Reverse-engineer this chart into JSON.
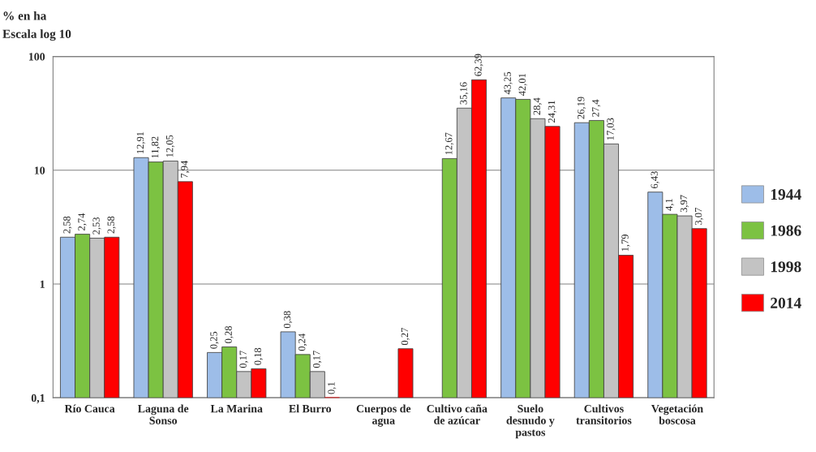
{
  "chart_data": {
    "type": "bar",
    "title": "% en ha",
    "subtitle": "Escala log 10",
    "categories": [
      "Río Cauca",
      "Laguna de\nSonso",
      "La Marina",
      "El Burro",
      "Cuerpos de\nagua",
      "Cultivo caña\nde azúcar",
      "Suelo\ndesnudo y\npastos",
      "Cultivos\ntransitorios",
      "Vegetación\nboscosa"
    ],
    "series": [
      {
        "name": "1944",
        "color": "#9dbde8",
        "values": [
          2.58,
          12.91,
          0.25,
          0.38,
          null,
          null,
          43.25,
          26.19,
          6.43
        ],
        "value_labels": [
          "2,58",
          "12,91",
          "0,25",
          "0,38",
          null,
          null,
          "43,25",
          "26,19",
          "6,43"
        ]
      },
      {
        "name": "1986",
        "color": "#7cc242",
        "values": [
          2.74,
          11.82,
          0.28,
          0.24,
          null,
          12.67,
          42.01,
          27.4,
          4.1
        ],
        "value_labels": [
          "2,74",
          "11,82",
          "0,28",
          "0,24",
          null,
          "12,67",
          "42,01",
          "27,4",
          "4,1"
        ]
      },
      {
        "name": "1998",
        "color": "#c3c3c3",
        "values": [
          2.53,
          12.05,
          0.17,
          0.17,
          null,
          35.16,
          28.4,
          17.03,
          3.97
        ],
        "value_labels": [
          "2,53",
          "12,05",
          "0,17",
          "0,17",
          null,
          "35,16",
          "28,4",
          "17,03",
          "3,97"
        ]
      },
      {
        "name": "2014",
        "color": "#ff0000",
        "values": [
          2.58,
          7.94,
          0.18,
          0.1,
          0.27,
          62.39,
          24.31,
          1.79,
          3.07
        ],
        "value_labels": [
          "2,58",
          "7,94",
          "0,18",
          "0,1",
          "0,27",
          "62,39",
          "24,31",
          "1,79",
          "3,07"
        ]
      }
    ],
    "log": "y",
    "ylim": [
      0.1,
      100
    ],
    "yticks": [
      {
        "value": 0.1,
        "label": "0,1"
      },
      1,
      10,
      100
    ],
    "grid": "y",
    "legend": "right"
  }
}
